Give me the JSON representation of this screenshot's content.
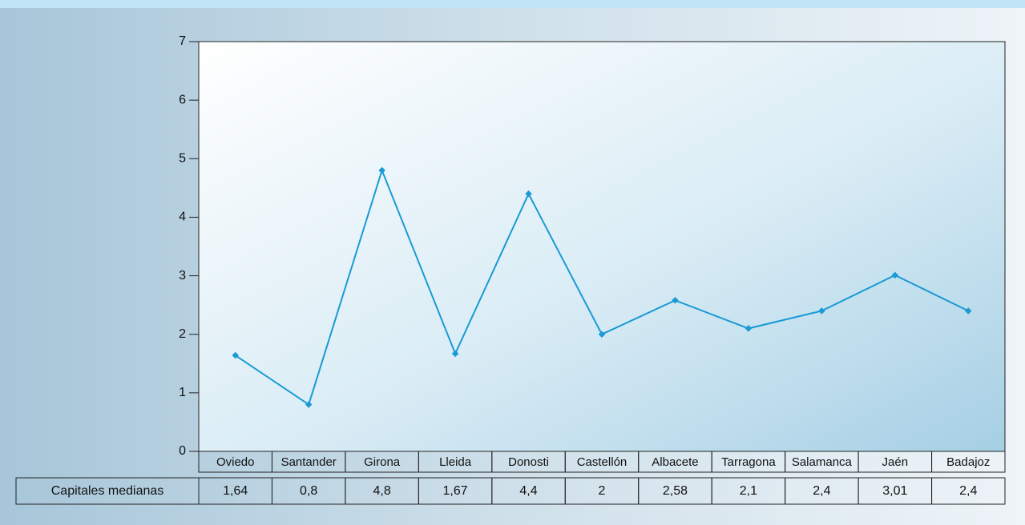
{
  "chart_data": {
    "type": "line",
    "categories": [
      "Oviedo",
      "Santander",
      "Girona",
      "Lleida",
      "Donosti",
      "Castellón",
      "Albacete",
      "Tarragona",
      "Salamanca",
      "Jaén",
      "Badajoz"
    ],
    "series": [
      {
        "name": "Capitales medianas",
        "color": "#1a9ad6",
        "values": [
          1.64,
          0.8,
          4.8,
          1.67,
          4.4,
          2,
          2.58,
          2.1,
          2.4,
          3.01,
          2.4
        ],
        "value_labels": [
          "1,64",
          "0,8",
          "4,8",
          "1,67",
          "4,4",
          "2",
          "2,58",
          "2,1",
          "2,4",
          "3,01",
          "2,4"
        ]
      }
    ],
    "ylim": [
      0,
      7
    ],
    "yticks": [
      0,
      1,
      2,
      3,
      4,
      5,
      6,
      7
    ]
  }
}
